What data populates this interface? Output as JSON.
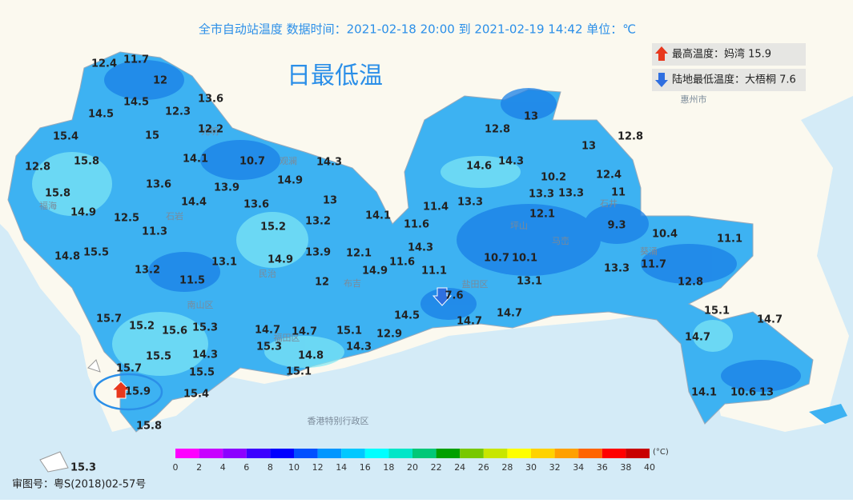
{
  "header": "全市自动站温度  数据时间：2021-02-18 20:00 到 2021-02-19 14:42  单位：℃",
  "title": "日最低温",
  "legend": {
    "max": "最高温度：妈湾 15.9",
    "min": "陆地最低温度：大梧桐 7.6"
  },
  "places": [
    "惠州市",
    "香港特别行政区",
    "光明",
    "石岩",
    "观澜",
    "民治",
    "布吉",
    "福田区",
    "南山区",
    "盐田区",
    "坪山",
    "马峦",
    "葵涌",
    "石井",
    "福海"
  ],
  "stations": [
    12.4,
    11.7,
    12,
    14.5,
    13.6,
    14.5,
    12.3,
    15.4,
    15,
    12.2,
    12.8,
    15.8,
    14.1,
    10.7,
    14.3,
    14.9,
    13.6,
    13.9,
    15.8,
    14.4,
    13.6,
    13,
    14.1,
    13.2,
    14.9,
    12.5,
    11.3,
    15.2,
    14.8,
    15.5,
    13.1,
    14.9,
    13.9,
    12.1,
    13.2,
    11.5,
    14.9,
    12,
    11.6,
    11.1,
    14.3,
    11.6,
    11.4,
    13.3,
    14.6,
    14.3,
    12.8,
    13,
    13,
    12.8,
    10.2,
    13.3,
    13.3,
    12.4,
    11,
    12.1,
    9.3,
    10.4,
    11.1,
    10.7,
    10.1,
    13.1,
    13.3,
    11.7,
    12.8,
    7.6,
    14.5,
    14.7,
    14.7,
    15.1,
    14.7,
    14.7,
    15.7,
    15.2,
    15.6,
    15.3,
    14.7,
    14.7,
    15.1,
    12.9,
    15.3,
    14.3,
    14.8,
    15.5,
    14.3,
    15.7,
    15.5,
    15.1,
    15.9,
    15.4,
    14.1,
    10.6,
    13,
    15.8,
    15.3
  ],
  "colorbar": {
    "unit": "(°C)",
    "ticks": [
      0,
      2,
      4,
      6,
      8,
      10,
      12,
      14,
      16,
      18,
      20,
      22,
      24,
      26,
      28,
      30,
      32,
      34,
      36,
      38,
      40
    ],
    "colors": [
      "#ff00ff",
      "#c800ff",
      "#8c00ff",
      "#3c00ff",
      "#0000ff",
      "#0050ff",
      "#0096ff",
      "#00c8ff",
      "#00ffff",
      "#00e6c8",
      "#00c878",
      "#00a000",
      "#78c800",
      "#c8e600",
      "#ffff00",
      "#ffd200",
      "#ffa000",
      "#ff6400",
      "#ff0000",
      "#c80000"
    ]
  },
  "footer": "审图号：粤S(2018)02-57号"
}
